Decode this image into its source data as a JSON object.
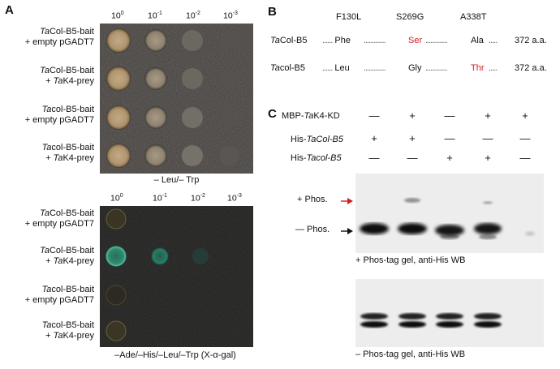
{
  "panel_a": {
    "letter": "A",
    "dilutions": [
      {
        "base": "10",
        "exp": "0"
      },
      {
        "base": "10",
        "exp": "-1"
      },
      {
        "base": "10",
        "exp": "-2"
      },
      {
        "base": "10",
        "exp": "-3"
      }
    ],
    "rows": [
      {
        "line1_prefix": "Ta",
        "line1_rest": "Col-B5-bait",
        "line2_pre": "+ empty pGADT7",
        "line2_it": "",
        "line2_post": ""
      },
      {
        "line1_prefix": "Ta",
        "line1_rest": "Col-B5-bait",
        "line2_pre": "+ ",
        "line2_it": "Ta",
        "line2_post": "K4-prey"
      },
      {
        "line1_prefix": "Ta",
        "line1_rest": "col-B5-bait",
        "line2_pre": "+ empty pGADT7",
        "line2_it": "",
        "line2_post": ""
      },
      {
        "line1_prefix": "Ta",
        "line1_rest": "col-B5-bait",
        "line2_pre": "+ ",
        "line2_it": "Ta",
        "line2_post": "K4-prey"
      }
    ],
    "top_caption": "– Leu/– Trp",
    "bottom_caption": "–Ade/–His/–Leu/–Trp (X-α-gal)"
  },
  "panel_b": {
    "letter": "B",
    "mutations": [
      "F130L",
      "S269G",
      "A338T"
    ],
    "rows": [
      {
        "prefix": "Ta",
        "rest": "Col-B5",
        "residues": [
          "Phe",
          "Ser",
          "Ala"
        ],
        "length": "372 a.a."
      },
      {
        "prefix": "Ta",
        "rest": "col-B5",
        "residues": [
          "Leu",
          "Gly",
          "Thr"
        ],
        "length": "372 a.a."
      }
    ],
    "highlight_color": "#d21f1f"
  },
  "panel_c": {
    "letter": "C",
    "conditions": [
      {
        "pre": "MBP-",
        "it": "Ta",
        "post": "K4-KD",
        "signs": [
          "—",
          "+",
          "—",
          "+",
          "+"
        ]
      },
      {
        "pre": "His-",
        "it": "TaCol-B5",
        "post": "",
        "signs": [
          "+",
          "+",
          "—",
          "—",
          "—"
        ]
      },
      {
        "pre": "His-",
        "it": "Tacol-B5",
        "post": "",
        "signs": [
          "—",
          "—",
          "+",
          "+",
          "—"
        ]
      }
    ],
    "plus_phos_label": "+ Phos.",
    "minus_phos_label": "— Phos.",
    "top_gel_caption": "+ Phos-tag gel, anti-His WB",
    "bottom_gel_caption": "– Phos-tag gel, anti-His WB",
    "arrow_red": "#d21f1f"
  }
}
